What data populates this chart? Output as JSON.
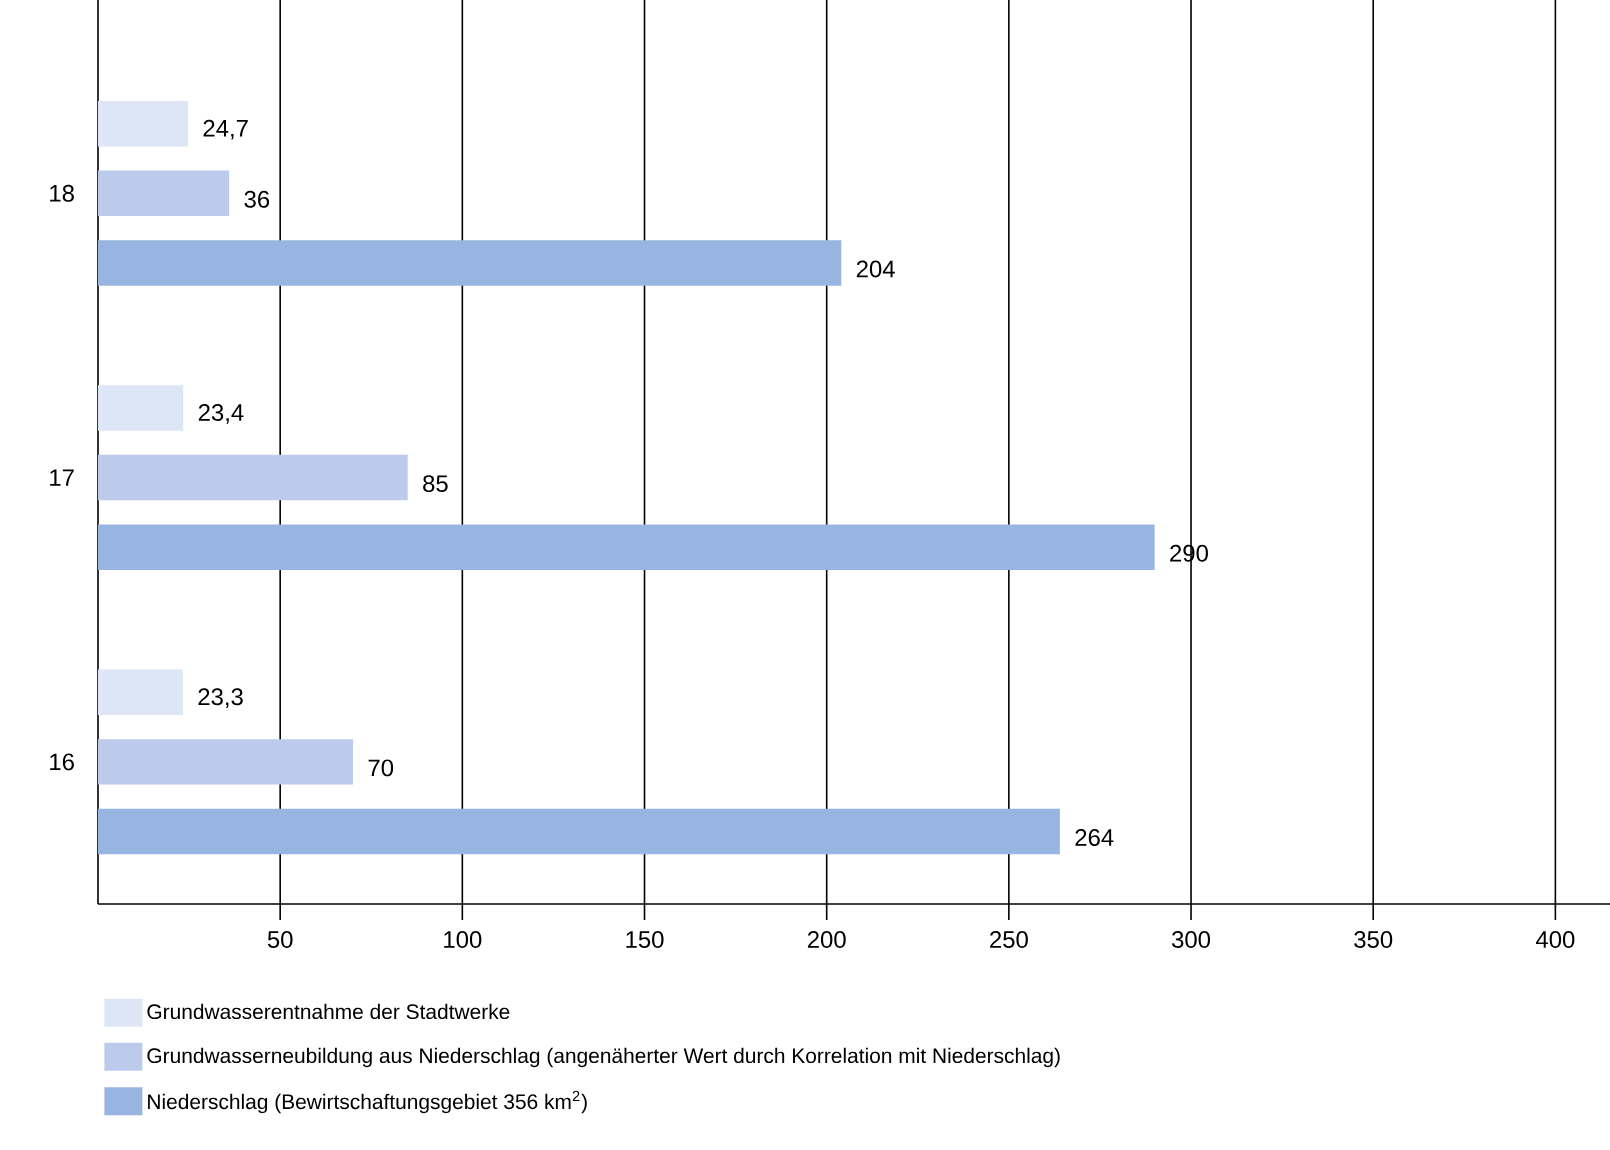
{
  "chart_data": {
    "type": "bar",
    "orientation": "horizontal",
    "categories": [
      "18",
      "17",
      "16"
    ],
    "series": [
      {
        "name": "Grundwasserentnahme der Stadtwerke",
        "color": "#dde6f5",
        "values": [
          24.7,
          23.4,
          23.3
        ],
        "value_labels": [
          "24,7",
          "23,4",
          "23,3"
        ]
      },
      {
        "name": "Grundwasserneubildung aus Niederschlag (angenäherter Wert durch Korrelation mit Niederschlag)",
        "color": "#bccbeb",
        "values": [
          36,
          85,
          70
        ],
        "value_labels": [
          "36",
          "85",
          "70"
        ]
      },
      {
        "name": "Niederschlag (Bewirtschaftungsgebiet 356 km$^{2}$)",
        "color": "#98b4e0",
        "values": [
          204,
          290,
          264
        ],
        "value_labels": [
          "204",
          "290",
          "264"
        ]
      }
    ],
    "xlim": [
      0,
      415
    ],
    "xticks": [
      50,
      100,
      150,
      200,
      250,
      300,
      350,
      400
    ],
    "grid": "x",
    "legend": "bottom"
  }
}
